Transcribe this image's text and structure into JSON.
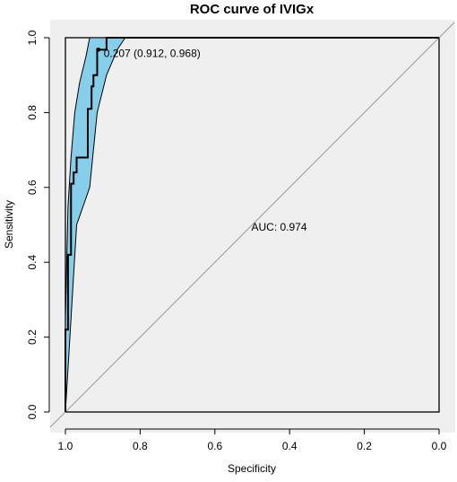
{
  "chart_data": {
    "type": "line",
    "title": "ROC curve of IVIGx",
    "xlabel": "Specificity",
    "ylabel": "Sensitivity",
    "xlim": [
      1.0,
      0.0
    ],
    "ylim": [
      0.0,
      1.0
    ],
    "x_reversed": true,
    "grid": false,
    "plot_background": "#efefef",
    "ci_fill_color": "#87ceeb",
    "x_ticks": [
      "1.0",
      "0.8",
      "0.6",
      "0.4",
      "0.2",
      "0.0"
    ],
    "y_ticks": [
      "0.0",
      "0.2",
      "0.4",
      "0.6",
      "0.8",
      "1.0"
    ],
    "auc_label": "AUC: 0.974",
    "threshold_point": {
      "specificity": 0.912,
      "sensitivity": 0.968,
      "label": "0.207 (0.912, 0.968)"
    },
    "series": [
      {
        "type": "roc-step",
        "points": [
          [
            1.0,
            0.0
          ],
          [
            1.0,
            0.22
          ],
          [
            0.993,
            0.22
          ],
          [
            0.993,
            0.42
          ],
          [
            0.985,
            0.42
          ],
          [
            0.985,
            0.61
          ],
          [
            0.978,
            0.61
          ],
          [
            0.978,
            0.64
          ],
          [
            0.97,
            0.64
          ],
          [
            0.97,
            0.68
          ],
          [
            0.94,
            0.68
          ],
          [
            0.94,
            0.81
          ],
          [
            0.93,
            0.81
          ],
          [
            0.93,
            0.87
          ],
          [
            0.925,
            0.87
          ],
          [
            0.925,
            0.9
          ],
          [
            0.915,
            0.9
          ],
          [
            0.915,
            0.968
          ],
          [
            0.89,
            0.968
          ],
          [
            0.89,
            1.0
          ],
          [
            0.0,
            1.0
          ]
        ]
      },
      {
        "type": "ci-upper",
        "points": [
          [
            1.0,
            0.0
          ],
          [
            1.0,
            0.25
          ],
          [
            0.993,
            0.55
          ],
          [
            0.985,
            0.68
          ],
          [
            0.975,
            0.8
          ],
          [
            0.962,
            0.88
          ],
          [
            0.945,
            0.95
          ],
          [
            0.935,
            1.0
          ]
        ]
      },
      {
        "type": "ci-lower",
        "points": [
          [
            1.0,
            0.0
          ],
          [
            0.97,
            0.5
          ],
          [
            0.935,
            0.6
          ],
          [
            0.915,
            0.8
          ],
          [
            0.89,
            0.9
          ],
          [
            0.86,
            0.97
          ],
          [
            0.84,
            1.0
          ]
        ]
      },
      {
        "type": "diagonal",
        "points": [
          [
            1.0,
            0.0
          ],
          [
            0.0,
            1.0
          ]
        ]
      }
    ]
  }
}
